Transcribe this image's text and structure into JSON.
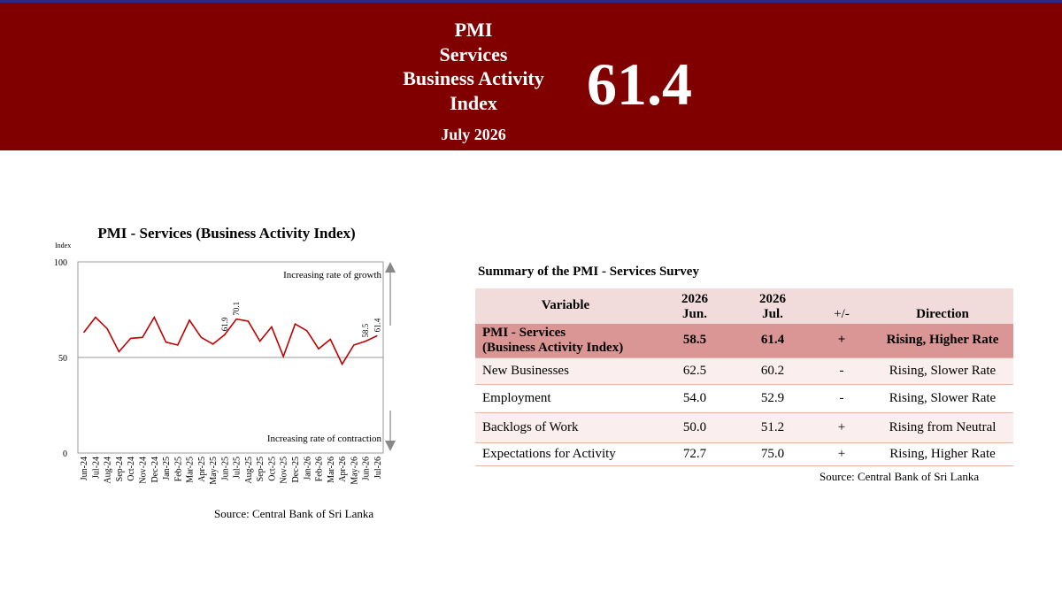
{
  "banner": {
    "title_lines": [
      "PMI",
      "Services",
      "Business Activity",
      "Index"
    ],
    "date": "July 2026",
    "value": "61.4"
  },
  "colors": {
    "banner": "#800000",
    "line": "#c00000",
    "header_row": "#f2dcdb",
    "highlight_row": "#d99694"
  },
  "chart": {
    "title": "PMI - Services (Business Activity Index)",
    "source": "Source: Central Bank of Sri Lanka"
  },
  "chart_data": {
    "type": "line",
    "title": "PMI - Services (Business Activity Index)",
    "ylabel": "Index",
    "ylim": [
      0,
      100
    ],
    "yticks": [
      0,
      50,
      100
    ],
    "reference_line": 50,
    "grid": false,
    "categories": [
      "Jun-24",
      "Jul-24",
      "Aug-24",
      "Sep-24",
      "Oct-24",
      "Nov-24",
      "Dec-24",
      "Jan-25",
      "Feb-25",
      "Mar-25",
      "Apr-25",
      "May-25",
      "Jun-25",
      "Jul-25",
      "Aug-25",
      "Sep-25",
      "Oct-25",
      "Nov-25",
      "Dec-25",
      "Jan-26",
      "Feb-26",
      "Mar-26",
      "Apr-26",
      "May-26",
      "Jun-26",
      "Jul-26"
    ],
    "series": [
      {
        "values": [
          63.0,
          71.0,
          65.0,
          53.0,
          60.0,
          60.5,
          71.0,
          58.0,
          56.5,
          69.5,
          60.5,
          57.0,
          61.9,
          70.1,
          69.0,
          58.5,
          66.0,
          50.5,
          67.5,
          64.0,
          54.5,
          59.5,
          46.5,
          56.5,
          58.5,
          61.4
        ]
      }
    ],
    "point_labels": [
      {
        "category": "Jun-25",
        "text": "61.9"
      },
      {
        "category": "Jul-25",
        "text": "70.1"
      },
      {
        "category": "Jun-26",
        "text": "58.5"
      },
      {
        "category": "Jul-26",
        "text": "61.4"
      }
    ],
    "annotations": {
      "growth": "Increasing rate of growth",
      "contraction": "Increasing rate of contraction"
    }
  },
  "summary": {
    "title": "Summary of the PMI - Services Survey",
    "headers": {
      "variable": "Variable",
      "jun_year": "2026",
      "jun": "Jun.",
      "jul_year": "2026",
      "jul": "Jul.",
      "change": "+/-",
      "direction": "Direction"
    },
    "highlight": {
      "line1": "PMI - Services",
      "line2": "(Business Activity Index)",
      "jun": "58.5",
      "jul": "61.4",
      "change": "+",
      "direction": "Rising, Higher Rate"
    },
    "rows": [
      {
        "variable": "New Businesses",
        "jun": "62.5",
        "jul": "60.2",
        "change": "-",
        "direction": "Rising, Slower Rate"
      },
      {
        "variable": "Employment",
        "jun": "54.0",
        "jul": "52.9",
        "change": "-",
        "direction": "Rising, Slower Rate"
      },
      {
        "variable": "Backlogs of Work",
        "jun": "50.0",
        "jul": "51.2",
        "change": "+",
        "direction": "Rising from Neutral"
      },
      {
        "variable": "Expectations for Activity",
        "jun": "72.7",
        "jul": "75.0",
        "change": "+",
        "direction": "Rising, Higher Rate"
      }
    ],
    "source": "Source: Central Bank of Sri Lanka"
  }
}
